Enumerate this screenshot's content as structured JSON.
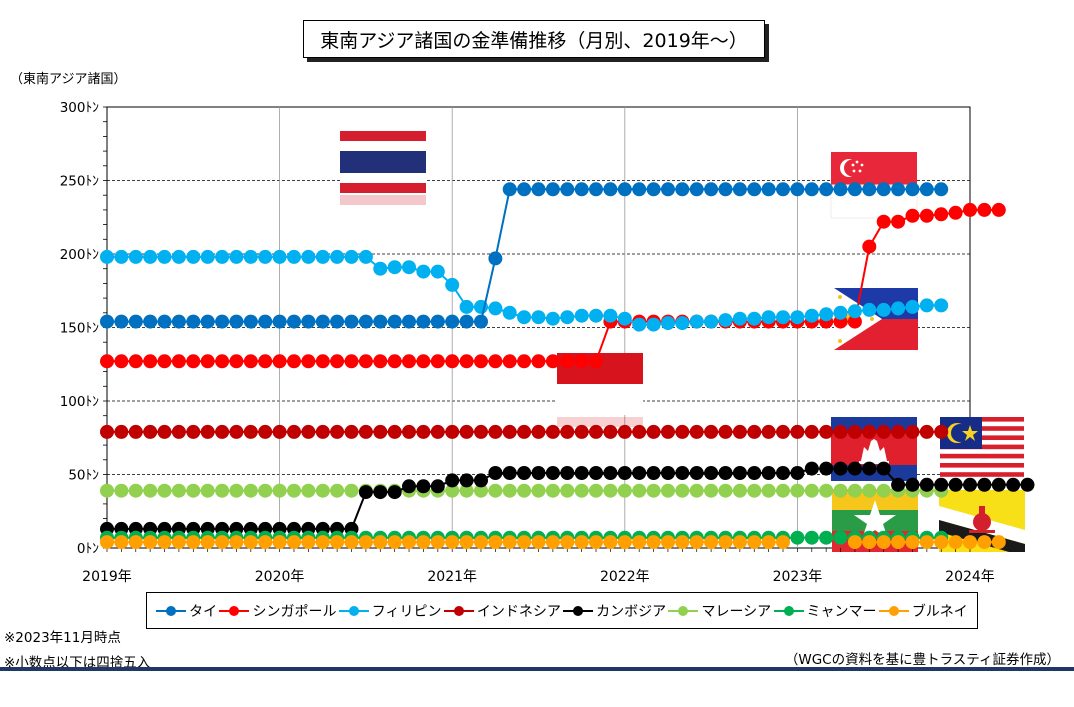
{
  "title": "東南アジア諸国の金準備推移（月別、2019年～）",
  "colors": {
    "thailand": "#0070c0",
    "singapore": "#ff0000",
    "philippines": "#00b0f0",
    "indonesia": "#c00000",
    "cambodia": "#000000",
    "malaysia": "#92d050",
    "myanmar": "#00b050",
    "brunei": "#ffa000"
  },
  "flags": [
    "thailand-flag",
    "singapore-flag",
    "philippines-flag",
    "indonesia-flag",
    "cambodia-flag",
    "malaysia-flag",
    "myanmar-flag",
    "brunei-flag"
  ],
  "notes": {
    "as_of": "※2023年11月時点",
    "rounding": "※小数点以下は四捨五入",
    "source": "（WGCの資料を基に豊トラスティ証券作成）"
  },
  "chart_data": {
    "type": "line",
    "title": "東南アジア諸国の金準備推移（月別、2019年～）",
    "ylabel": "（東南アジア諸国）",
    "xlabel": "",
    "ylim": [
      0,
      300
    ],
    "xlim": [
      "2019-01",
      "2024-01"
    ],
    "y_ticks": [
      "0ﾄﾝ",
      "50ﾄﾝ",
      "100ﾄﾝ",
      "150ﾄﾝ",
      "200ﾄﾝ",
      "250ﾄﾝ",
      "300ﾄﾝ"
    ],
    "y_tick_values": [
      0,
      50,
      100,
      150,
      200,
      250,
      300
    ],
    "x_ticks": [
      "2019年",
      "2020年",
      "2021年",
      "2022年",
      "2023年",
      "2024年"
    ],
    "x_start": "2019-01",
    "x_frequency": "monthly",
    "grid": true,
    "legend_position": "bottom",
    "series": [
      {
        "name": "タイ",
        "key": "thailand",
        "values": [
          154,
          154,
          154,
          154,
          154,
          154,
          154,
          154,
          154,
          154,
          154,
          154,
          154,
          154,
          154,
          154,
          154,
          154,
          154,
          154,
          154,
          154,
          154,
          154,
          154,
          154,
          154,
          197,
          244,
          244,
          244,
          244,
          244,
          244,
          244,
          244,
          244,
          244,
          244,
          244,
          244,
          244,
          244,
          244,
          244,
          244,
          244,
          244,
          244,
          244,
          244,
          244,
          244,
          244,
          244,
          244,
          244,
          244,
          244
        ]
      },
      {
        "name": "シンガポール",
        "key": "singapore",
        "values": [
          127,
          127,
          127,
          127,
          127,
          127,
          127,
          127,
          127,
          127,
          127,
          127,
          127,
          127,
          127,
          127,
          127,
          127,
          127,
          127,
          127,
          127,
          127,
          127,
          127,
          127,
          127,
          127,
          127,
          127,
          127,
          127,
          127,
          127,
          127,
          154,
          154,
          154,
          154,
          154,
          154,
          154,
          154,
          154,
          154,
          154,
          154,
          154,
          154,
          154,
          154,
          154,
          154,
          205,
          222,
          222,
          226,
          226,
          227,
          228,
          230,
          230,
          230
        ]
      },
      {
        "name": "フィリピン",
        "key": "philippines",
        "values": [
          198,
          198,
          198,
          198,
          198,
          198,
          198,
          198,
          198,
          198,
          198,
          198,
          198,
          198,
          198,
          198,
          198,
          198,
          198,
          190,
          191,
          191,
          188,
          188,
          179,
          164,
          164,
          163,
          160,
          157,
          157,
          156,
          157,
          158,
          158,
          158,
          156,
          152,
          152,
          153,
          153,
          154,
          154,
          155,
          156,
          156,
          157,
          157,
          157,
          158,
          159,
          160,
          161,
          162,
          162,
          163,
          164,
          165,
          165
        ]
      },
      {
        "name": "インドネシア",
        "key": "indonesia",
        "values": [
          79,
          79,
          79,
          79,
          79,
          79,
          79,
          79,
          79,
          79,
          79,
          79,
          79,
          79,
          79,
          79,
          79,
          79,
          79,
          79,
          79,
          79,
          79,
          79,
          79,
          79,
          79,
          79,
          79,
          79,
          79,
          79,
          79,
          79,
          79,
          79,
          79,
          79,
          79,
          79,
          79,
          79,
          79,
          79,
          79,
          79,
          79,
          79,
          79,
          79,
          79,
          79,
          79,
          79,
          79,
          79,
          79,
          79,
          79
        ]
      },
      {
        "name": "カンボジア",
        "key": "cambodia",
        "values": [
          13,
          13,
          13,
          13,
          13,
          13,
          13,
          13,
          13,
          13,
          13,
          13,
          13,
          13,
          13,
          13,
          13,
          13,
          38,
          38,
          38,
          42,
          42,
          42,
          46,
          46,
          46,
          51,
          51,
          51,
          51,
          51,
          51,
          51,
          51,
          51,
          51,
          51,
          51,
          51,
          51,
          51,
          51,
          51,
          51,
          51,
          51,
          51,
          51,
          54,
          54,
          54,
          54,
          54,
          54,
          43,
          43,
          43,
          43,
          43,
          43,
          43,
          43,
          43,
          43
        ]
      },
      {
        "name": "マレーシア",
        "key": "malaysia",
        "values": [
          39,
          39,
          39,
          39,
          39,
          39,
          39,
          39,
          39,
          39,
          39,
          39,
          39,
          39,
          39,
          39,
          39,
          39,
          39,
          39,
          39,
          39,
          39,
          39,
          39,
          39,
          39,
          39,
          39,
          39,
          39,
          39,
          39,
          39,
          39,
          39,
          39,
          39,
          39,
          39,
          39,
          39,
          39,
          39,
          39,
          39,
          39,
          39,
          39,
          39,
          39,
          39,
          39,
          39,
          39,
          39,
          39,
          39,
          39
        ]
      },
      {
        "name": "ミャンマー",
        "key": "myanmar",
        "values": [
          7,
          7,
          7,
          7,
          7,
          7,
          7,
          7,
          7,
          7,
          7,
          7,
          7,
          7,
          7,
          7,
          7,
          7,
          7,
          7,
          7,
          7,
          7,
          7,
          7,
          7,
          7,
          7,
          7,
          7,
          7,
          7,
          7,
          7,
          7,
          7,
          7,
          7,
          7,
          7,
          7,
          7,
          7,
          7,
          7,
          7,
          7,
          7,
          7,
          7,
          7,
          7,
          7,
          7,
          7,
          7,
          7,
          7,
          7
        ]
      },
      {
        "name": "ブルネイ",
        "key": "brunei",
        "values": [
          4,
          4,
          4,
          4,
          4,
          4,
          4,
          4,
          4,
          4,
          4,
          4,
          4,
          4,
          4,
          4,
          4,
          4,
          4,
          4,
          4,
          4,
          4,
          4,
          4,
          4,
          4,
          4,
          4,
          4,
          4,
          4,
          4,
          4,
          4,
          4,
          4,
          4,
          4,
          4,
          4,
          4,
          4,
          4,
          4,
          4,
          4,
          4,
          null,
          null,
          null,
          null,
          4,
          4,
          4,
          4,
          4,
          4,
          4,
          4,
          4,
          4,
          4
        ]
      }
    ]
  }
}
